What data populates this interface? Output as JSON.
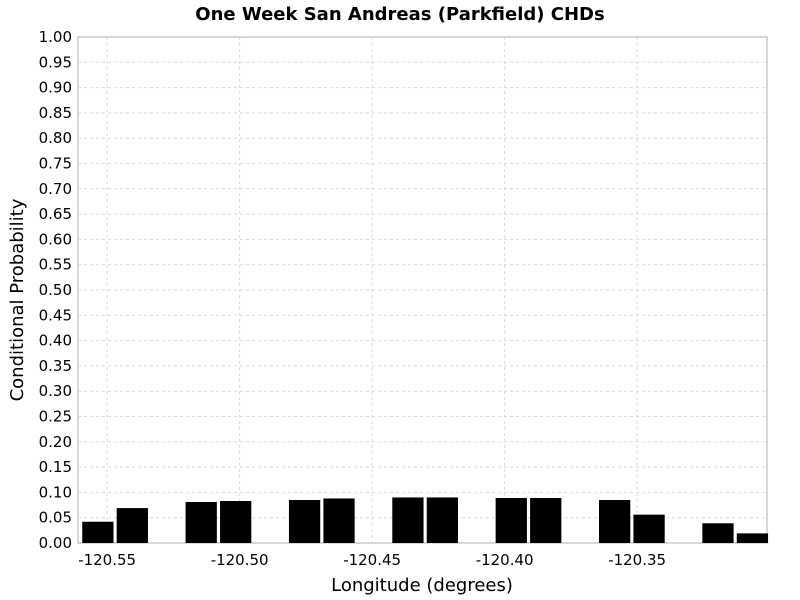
{
  "chart_data": {
    "type": "bar",
    "title": "One Week San Andreas (Parkfield) CHDs",
    "xlabel": "Longitude (degrees)",
    "ylabel": "Conditional Probability",
    "xlim": [
      -120.561,
      -120.301
    ],
    "ylim": [
      0,
      1.0
    ],
    "grid": true,
    "x_ticks": [
      "-120.55",
      "-120.50",
      "-120.45",
      "-120.40",
      "-120.35"
    ],
    "x_tick_values": [
      -120.55,
      -120.5,
      -120.45,
      -120.4,
      -120.35
    ],
    "y_ticks": [
      "0.00",
      "0.05",
      "0.10",
      "0.15",
      "0.20",
      "0.25",
      "0.30",
      "0.35",
      "0.40",
      "0.45",
      "0.50",
      "0.55",
      "0.60",
      "0.65",
      "0.70",
      "0.75",
      "0.80",
      "0.85",
      "0.90",
      "0.95",
      "1.00"
    ],
    "bar_color": "#000000",
    "x": [
      -120.5535,
      -120.5405,
      -120.5145,
      -120.5015,
      -120.4755,
      -120.4625,
      -120.4365,
      -120.4235,
      -120.3975,
      -120.3845,
      -120.3585,
      -120.3455,
      -120.3195,
      -120.3065
    ],
    "values": [
      0.042,
      0.069,
      0.081,
      0.083,
      0.085,
      0.088,
      0.09,
      0.09,
      0.089,
      0.089,
      0.085,
      0.056,
      0.039,
      0.019
    ]
  }
}
